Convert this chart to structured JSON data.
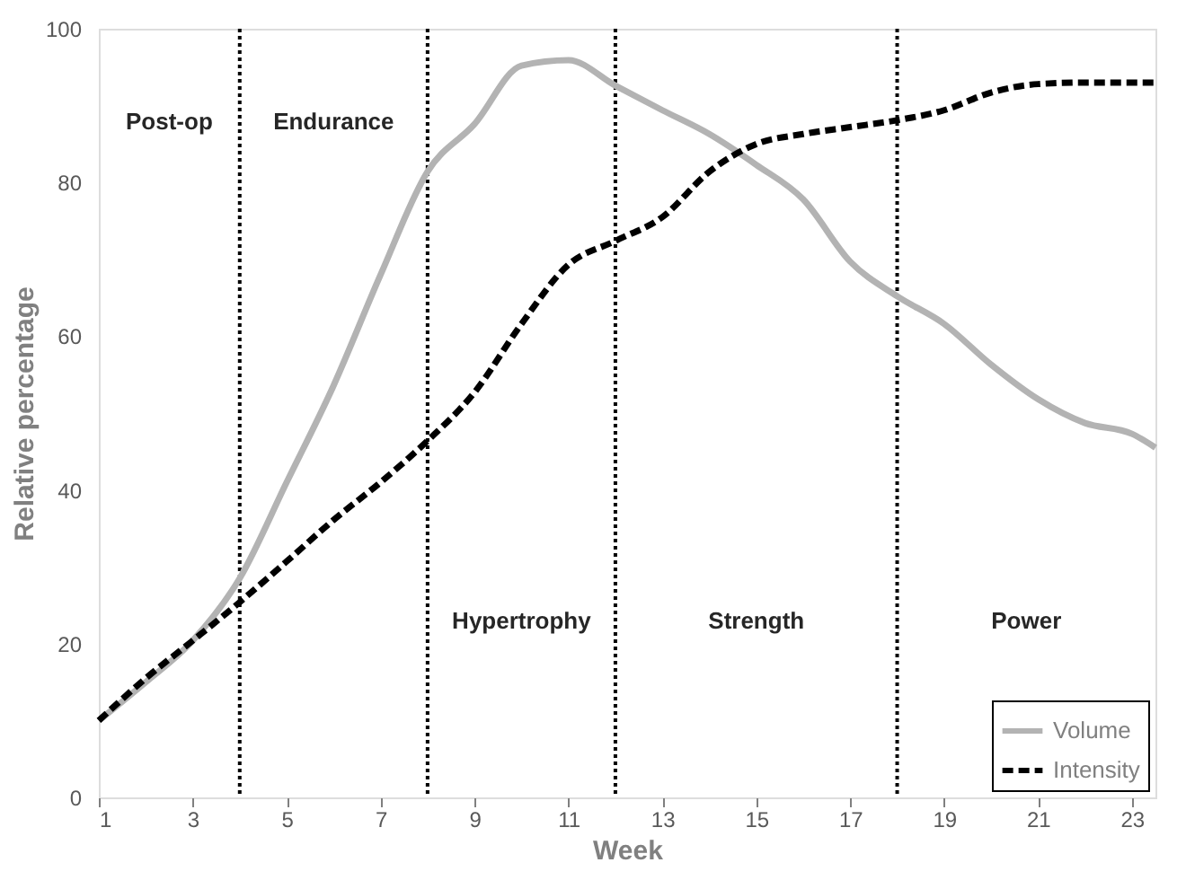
{
  "chart_data": {
    "type": "line",
    "xlabel": "Week",
    "ylabel": "Relative percentage",
    "x": [
      1,
      2,
      3,
      4,
      5,
      6,
      7,
      8,
      9,
      10,
      11,
      12,
      13,
      14,
      15,
      16,
      17,
      18,
      19,
      20,
      21,
      22,
      23,
      23.5
    ],
    "series": [
      {
        "name": "Volume",
        "color": "#b3b3b3",
        "line_style": "solid",
        "values": [
          10,
          15,
          20.4,
          28.5,
          41,
          53.6,
          68,
          81.4,
          87.6,
          95.2,
          95.9,
          92.6,
          89.4,
          86.3,
          82.3,
          77.8,
          69.7,
          65.2,
          61.6,
          56.3,
          51.8,
          48.7,
          47.3,
          45.5
        ]
      },
      {
        "name": "Intensity",
        "color": "#000000",
        "line_style": "dashed",
        "values": [
          10,
          15.5,
          20.4,
          25.4,
          30.7,
          36.1,
          41,
          46.4,
          52.7,
          61.6,
          69.3,
          72.4,
          75.5,
          81.4,
          85,
          86.3,
          87.2,
          88.1,
          89.4,
          91.7,
          92.8,
          93,
          93,
          93
        ]
      }
    ],
    "xlim": [
      1,
      23.5
    ],
    "xticks": [
      1,
      3,
      5,
      7,
      9,
      11,
      13,
      15,
      17,
      19,
      21,
      23
    ],
    "ylim": [
      0,
      100
    ],
    "yticks": [
      0,
      20,
      40,
      60,
      80,
      100
    ],
    "ref_lines": [
      {
        "axis": "x",
        "value": 4,
        "line_style": "dotted",
        "color": "#000000"
      },
      {
        "axis": "x",
        "value": 8,
        "line_style": "dotted",
        "color": "#000000"
      },
      {
        "axis": "x",
        "value": 12,
        "line_style": "dotted",
        "color": "#000000"
      },
      {
        "axis": "x",
        "value": 18,
        "line_style": "dotted",
        "color": "#000000"
      }
    ],
    "annotations": [
      "Post-op",
      "Endurance",
      "Hypertrophy",
      "Strength",
      "Power"
    ],
    "grid": false,
    "legend": "bottom right",
    "marker": "none"
  }
}
